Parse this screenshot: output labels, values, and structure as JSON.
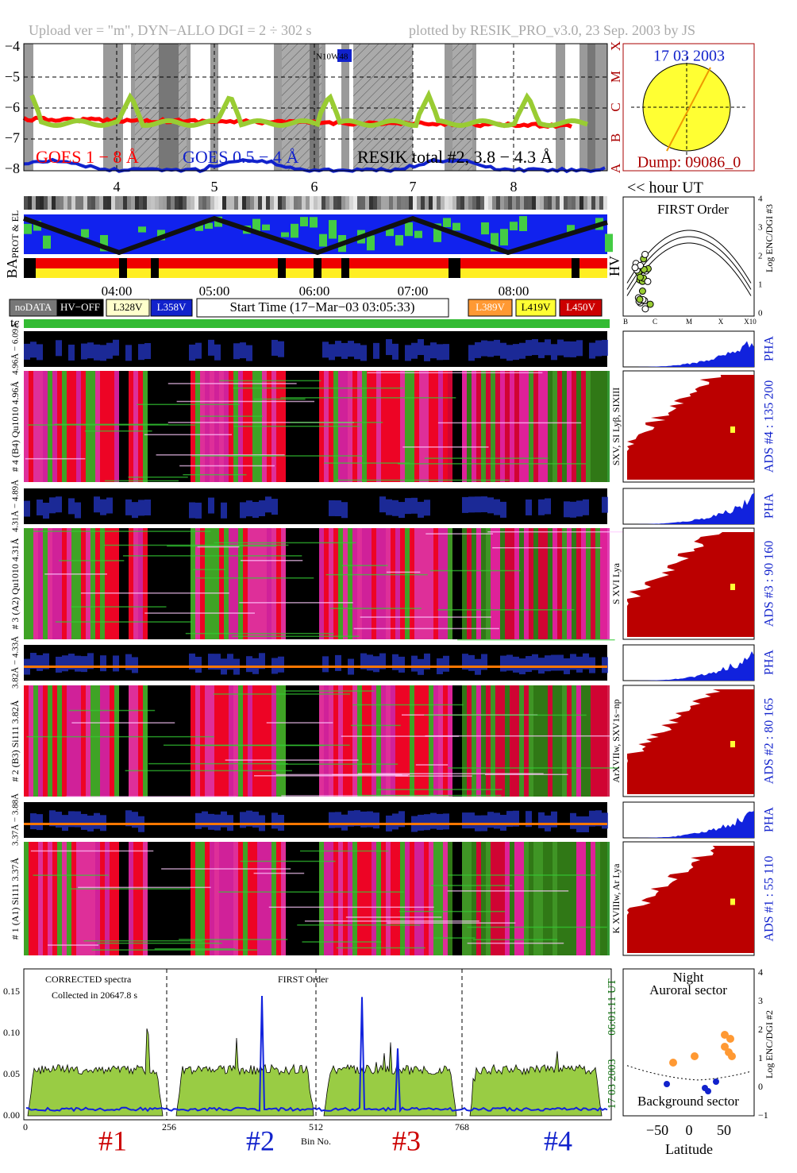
{
  "header": {
    "upload": "Upload ver = \"m\", DYN−ALLO DGI =   2 ÷ 302 s",
    "plotted": "plotted by RESIK_PRO_v3.0, 23 Sep. 2003 by JS"
  },
  "goes": {
    "yticks": [
      "−4",
      "−5",
      "−6",
      "−7",
      "−8"
    ],
    "classes": [
      "X",
      "M",
      "C",
      "B",
      "A"
    ],
    "legend": [
      "GOES 1 − 8 Å",
      "GOES 0.5 − 4 Å",
      "RESIK total #2, 3.8 − 4.3 Å"
    ],
    "region": "N10W48"
  },
  "hours": {
    "labels": [
      "4",
      "5",
      "6",
      "7",
      "8"
    ],
    "unit": "<< hour UT"
  },
  "sun": {
    "date": "17 03 2003",
    "dump": "Dump: 09086_0"
  },
  "side_labels": {
    "prot": "PROT & EL",
    "ba": "BA",
    "hv": "HV"
  },
  "times": [
    "04:00",
    "05:00",
    "06:00",
    "07:00",
    "08:00"
  ],
  "legend": {
    "left": [
      "noDATA",
      "HV−OFF",
      "L328V",
      "L358V"
    ],
    "start": "Start Time (17−Mar−03 03:05:33)",
    "right": [
      "L389V",
      "L419V",
      "L450V"
    ]
  },
  "tc": "tc",
  "channels": [
    {
      "pha_label": "4.96Å − 6.09Å",
      "label": "# 4 (B4) Qu1010 4.96Å",
      "lines": "SXV, SI Lyβ, SIXIII",
      "ads": "ADS #4 :  135 200",
      "pha": "PHA"
    },
    {
      "pha_label": "4.31Å − 4.89Å",
      "label": "# 3 (A2) Qu1010 4.31Å",
      "lines": "S XVI Lya",
      "ads": "ADS #3 :  90 160",
      "pha": "PHA"
    },
    {
      "pha_label": "3.82Å − 4.33Å",
      "label": "# 2 (B3) Si111 3.82Å",
      "lines": "ArXVIIw, SXV1s−np",
      "ads": "ADS #2 :  80 165",
      "pha": "PHA"
    },
    {
      "pha_label": "3.37Å − 3.88Å",
      "label": "# 1 (A1) Si111 3.37Å",
      "lines": "K XVIIIw, Ar Lya",
      "ads": "ADS #1 :  55 110",
      "pha": "PHA"
    }
  ],
  "first_order": {
    "title": "FIRST Order",
    "ylabel": "Log ENC/DGI #3",
    "yticks": [
      "0",
      "1",
      "2",
      "3",
      "4"
    ],
    "xticks": [
      "B",
      "C",
      "M",
      "X",
      "X10"
    ]
  },
  "spectrum": {
    "title": "CORRECTED spectra",
    "collected": "Collected in 20647.8 s",
    "order": "FIRST Order",
    "yticks": [
      "0.00",
      "0.05",
      "0.10",
      "0.15"
    ],
    "xticks": [
      "0",
      "256",
      "512",
      "768"
    ],
    "xlabel": "Bin No.",
    "channels": [
      "#1",
      "#2",
      "#3",
      "#4"
    ],
    "time": "06:01:11 UT",
    "date": "17 03 2003"
  },
  "latitude": {
    "night": "Night",
    "auroral": "Auroral sector",
    "background": "Background sector",
    "ylabel": "Log ENC/DGI #2",
    "yticks": [
      "−1",
      "0",
      "1",
      "2",
      "3",
      "4"
    ],
    "xticks": [
      "−50",
      "0",
      "50"
    ],
    "xlabel": "Latitude"
  }
}
